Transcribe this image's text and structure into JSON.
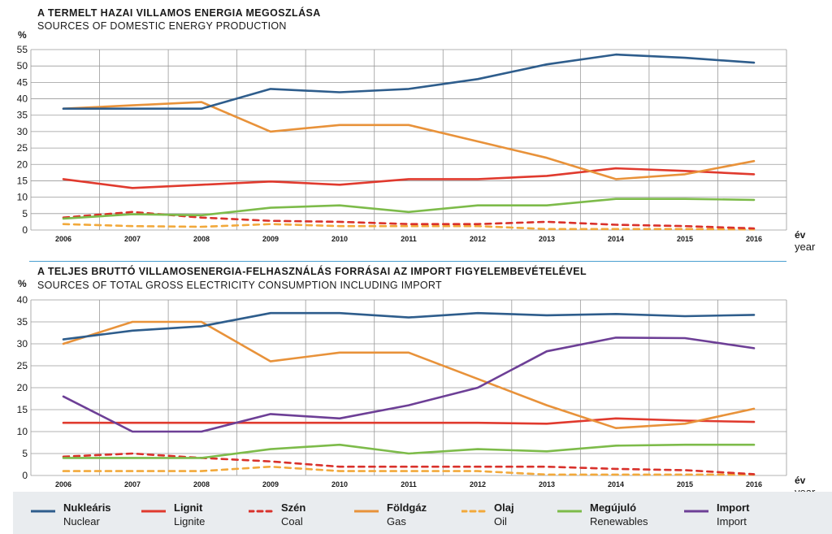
{
  "chart_data": [
    {
      "type": "line",
      "title": "A TERMELT HAZAI VILLAMOS ENERGIA MEGOSZLÁSA",
      "subtitle": "SOURCES OF DOMESTIC ENERGY PRODUCTION",
      "ylabel": "%",
      "xlabel": "év",
      "xlabel_en": "year",
      "x": [
        "2006",
        "2007",
        "2008",
        "2009",
        "2010",
        "2011",
        "2012",
        "2013",
        "2014",
        "2015",
        "2016"
      ],
      "yticks": [
        "0",
        "5",
        "10",
        "15",
        "20",
        "25",
        "30",
        "35",
        "40",
        "45",
        "50",
        "55"
      ],
      "ylim": [
        0,
        55
      ],
      "grid": true,
      "series": [
        {
          "key": "nuclear",
          "name": "Nukleáris",
          "values": [
            37,
            37,
            37,
            43,
            42,
            43,
            46,
            50.5,
            53.5,
            52.5,
            51
          ]
        },
        {
          "key": "lignite",
          "name": "Lignit",
          "values": [
            15.5,
            12.8,
            13.8,
            14.8,
            13.8,
            15.5,
            15.5,
            16.5,
            18.8,
            18,
            17
          ]
        },
        {
          "key": "coal",
          "name": "Szén",
          "values": [
            3.8,
            5.5,
            3.8,
            2.8,
            2.5,
            1.8,
            1.8,
            2.5,
            1.6,
            1.2,
            0.5
          ]
        },
        {
          "key": "gas",
          "name": "Földgáz",
          "values": [
            37,
            38,
            39,
            30,
            32,
            32,
            27,
            22,
            15.5,
            17,
            21
          ]
        },
        {
          "key": "oil",
          "name": "Olaj",
          "values": [
            1.8,
            1.2,
            1.0,
            1.8,
            1.2,
            1.2,
            1.2,
            0.3,
            0.3,
            0.3,
            0.2
          ]
        },
        {
          "key": "renewables",
          "name": "Megújuló",
          "values": [
            3.5,
            4.8,
            4.5,
            6.8,
            7.5,
            5.5,
            7.5,
            7.5,
            9.5,
            9.5,
            9.2
          ]
        }
      ]
    },
    {
      "type": "line",
      "title": "A TELJES BRUTTÓ VILLAMOSENERGIA-FELHASZNÁLÁS FORRÁSAI AZ IMPORT FIGYELEMBEVÉTELÉVEL",
      "subtitle": "SOURCES OF TOTAL GROSS ELECTRICITY CONSUMPTION INCLUDING IMPORT",
      "ylabel": "%",
      "xlabel": "év",
      "xlabel_en": "year",
      "x": [
        "2006",
        "2007",
        "2008",
        "2009",
        "2010",
        "2011",
        "2012",
        "2013",
        "2014",
        "2015",
        "2016"
      ],
      "yticks": [
        "0",
        "5",
        "10",
        "15",
        "20",
        "25",
        "30",
        "35",
        "40"
      ],
      "ylim": [
        0,
        40
      ],
      "grid": true,
      "series": [
        {
          "key": "nuclear",
          "name": "Nukleáris",
          "values": [
            31,
            33,
            34,
            37,
            37,
            36,
            37,
            36.5,
            36.8,
            36.3,
            36.6
          ]
        },
        {
          "key": "lignite",
          "name": "Lignit",
          "values": [
            12,
            12,
            12,
            12,
            12,
            12,
            12,
            11.8,
            13,
            12.5,
            12.2
          ]
        },
        {
          "key": "coal",
          "name": "Szén",
          "values": [
            4.3,
            5,
            4,
            3.2,
            2,
            2,
            2,
            2,
            1.5,
            1.2,
            0.3
          ]
        },
        {
          "key": "gas",
          "name": "Földgáz",
          "values": [
            30,
            35,
            35,
            26,
            28,
            28,
            22,
            16,
            10.8,
            11.8,
            15.2
          ]
        },
        {
          "key": "oil",
          "name": "Olaj",
          "values": [
            1,
            1,
            1,
            2,
            1,
            1,
            1,
            0.2,
            0.2,
            0.2,
            0.2
          ]
        },
        {
          "key": "renewables",
          "name": "Megújuló",
          "values": [
            4,
            4,
            4,
            6,
            7,
            5,
            6,
            5.5,
            6.8,
            7,
            7
          ]
        },
        {
          "key": "import",
          "name": "Import",
          "values": [
            18,
            10,
            10,
            14,
            13,
            16,
            20,
            28.3,
            31.4,
            31.3,
            29
          ]
        }
      ]
    }
  ],
  "legend": [
    {
      "key": "nuclear",
      "name": "Nukleáris",
      "name_en": "Nuclear",
      "color": "#2e5d8c",
      "dashed": false
    },
    {
      "key": "lignite",
      "name": "Lignit",
      "name_en": "Lignite",
      "color": "#e03a2e",
      "dashed": false
    },
    {
      "key": "coal",
      "name": "Szén",
      "name_en": "Coal",
      "color": "#d9312b",
      "dashed": true
    },
    {
      "key": "gas",
      "name": "Földgáz",
      "name_en": "Gas",
      "color": "#e8923a",
      "dashed": false
    },
    {
      "key": "oil",
      "name": "Olaj",
      "name_en": "Oil",
      "color": "#f2a93b",
      "dashed": true
    },
    {
      "key": "renewables",
      "name": "Megújuló",
      "name_en": "Renewables",
      "color": "#7dbb4a",
      "dashed": false
    },
    {
      "key": "import",
      "name": "Import",
      "name_en": "Import",
      "color": "#6d3f96",
      "dashed": false
    }
  ]
}
